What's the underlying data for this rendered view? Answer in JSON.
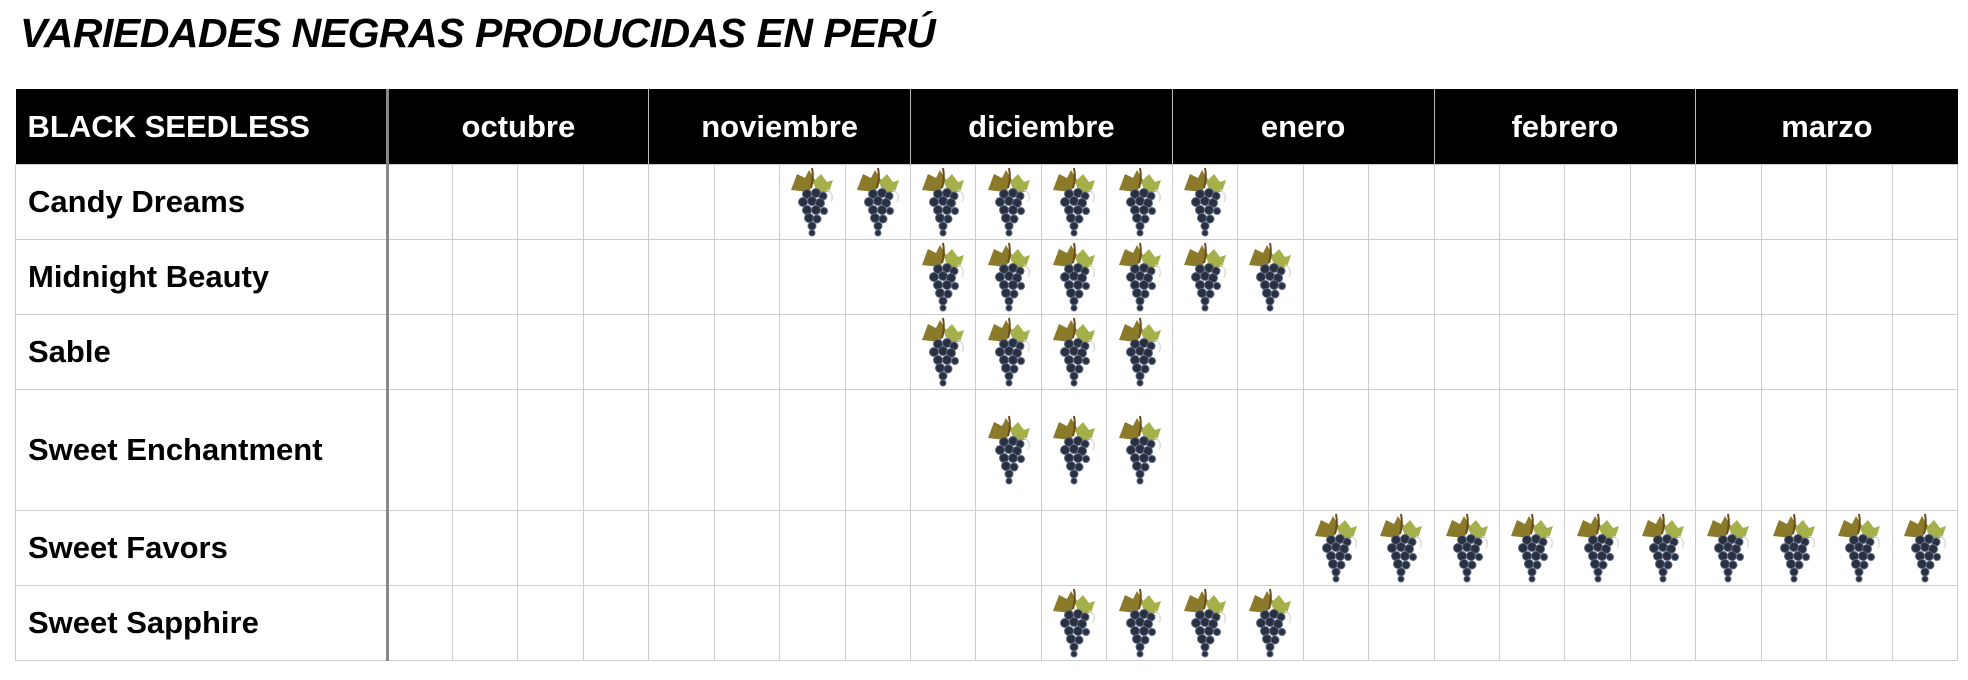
{
  "title": "VARIEDADES NEGRAS PRODUCIDAS EN PERÚ",
  "header_label": "BLACK SEEDLESS",
  "months": [
    "octubre",
    "noviembre",
    "diciembre",
    "enero",
    "febrero",
    "marzo"
  ],
  "weeks_per_month": 4,
  "icon": "grape-bunch-icon",
  "colors": {
    "header_bg": "#000000",
    "header_text": "#ffffff",
    "grid": "#cccccc"
  },
  "varieties": [
    {
      "name": "Candy Dreams",
      "weeks_with_production": [
        6,
        7,
        8,
        9,
        10,
        11,
        12
      ]
    },
    {
      "name": "Midnight Beauty",
      "weeks_with_production": [
        8,
        9,
        10,
        11,
        12,
        13
      ]
    },
    {
      "name": "Sable",
      "weeks_with_production": [
        8,
        9,
        10,
        11
      ]
    },
    {
      "name": "Sweet Enchantment",
      "weeks_with_production": [
        9,
        10,
        11
      ]
    },
    {
      "name": "Sweet Favors",
      "weeks_with_production": [
        14,
        15,
        16,
        17,
        18,
        19,
        20,
        21,
        22,
        23
      ]
    },
    {
      "name": "Sweet Sapphire",
      "weeks_with_production": [
        10,
        11,
        12,
        13
      ]
    }
  ]
}
